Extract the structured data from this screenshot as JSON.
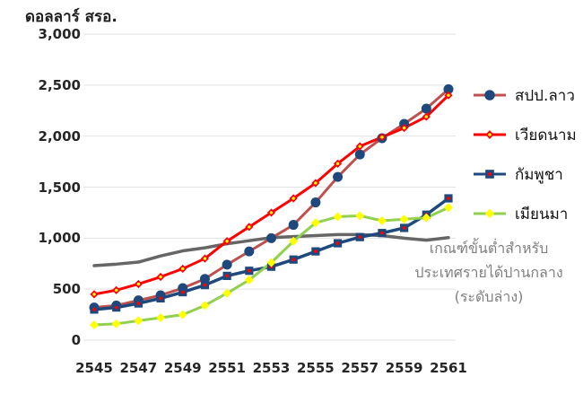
{
  "title": "ดอลลาร์ สรอ.",
  "chart_data": {
    "type": "line",
    "title": "ดอลลาร์ สรอ.",
    "unit": "US dollars",
    "x": [
      2545,
      2546,
      2547,
      2548,
      2549,
      2550,
      2551,
      2552,
      2553,
      2554,
      2555,
      2556,
      2557,
      2558,
      2559,
      2560,
      2561
    ],
    "x_tick_labels": [
      "2545",
      "2547",
      "2549",
      "2551",
      "2553",
      "2555",
      "2557",
      "2559",
      "2561"
    ],
    "y_ticks": [
      {
        "value": 0,
        "label": "0"
      },
      {
        "value": 500,
        "label": "500"
      },
      {
        "value": 1000,
        "label": "1,000"
      },
      {
        "value": 1500,
        "label": "1,500"
      },
      {
        "value": 2000,
        "label": "2,000"
      },
      {
        "value": 2500,
        "label": "2,500"
      },
      {
        "value": 3000,
        "label": "3,000"
      }
    ],
    "ylim": [
      0,
      3000
    ],
    "grid": "horizontal",
    "legend_position": "right",
    "series": [
      {
        "key": "threshold",
        "name": "เกณฑ์ขั้นต่ำสำหรับประเทศรายได้ปานกลาง (ระดับล่าง)",
        "line_color": "#666666",
        "line_width": 3.5,
        "marker": "none",
        "values": [
          730,
          745,
          765,
          825,
          875,
          905,
          945,
          975,
          1005,
          1015,
          1025,
          1035,
          1035,
          1025,
          1000,
          980,
          1005
        ]
      },
      {
        "key": "laos",
        "name": "สปป.ลาว",
        "line_color": "#C0504D",
        "line_width": 3,
        "marker": "circle",
        "marker_fill": "#1F497D",
        "values": [
          320,
          340,
          390,
          440,
          510,
          600,
          740,
          870,
          1000,
          1130,
          1350,
          1600,
          1820,
          1980,
          2120,
          2270,
          2460
        ]
      },
      {
        "key": "vietnam",
        "name": "เวียดนาม",
        "line_color": "#FF0000",
        "line_width": 3,
        "marker": "diamond",
        "marker_fill": "#FF0000",
        "marker_dot": "#FFFF00",
        "values": [
          450,
          490,
          550,
          620,
          700,
          800,
          970,
          1110,
          1250,
          1390,
          1540,
          1730,
          1900,
          1990,
          2080,
          2190,
          2400
        ]
      },
      {
        "key": "cambodia",
        "name": "กัมพูชา",
        "line_color": "#1F497D",
        "line_width": 3.5,
        "marker": "square",
        "marker_fill": "#1F497D",
        "marker_dot": "#FF0000",
        "values": [
          300,
          320,
          360,
          410,
          470,
          540,
          630,
          680,
          720,
          790,
          870,
          950,
          1010,
          1050,
          1100,
          1230,
          1390
        ]
      },
      {
        "key": "myanmar",
        "name": "เมียนมา",
        "line_color": "#92D050",
        "line_width": 3,
        "marker": "diamond",
        "marker_fill": "#FFFF00",
        "values": [
          150,
          160,
          190,
          220,
          250,
          340,
          460,
          590,
          760,
          970,
          1150,
          1210,
          1220,
          1170,
          1185,
          1200,
          1300
        ]
      }
    ]
  },
  "legend": {
    "items": [
      {
        "label": "สปป.ลาว"
      },
      {
        "label": "เวียดนาม"
      },
      {
        "label": "กัมพูชา"
      },
      {
        "label": "เมียนมา"
      }
    ]
  },
  "annotation": {
    "color": "#7f7f7f",
    "lines": [
      "เกณฑ์ขั้นต่ำสำหรับ",
      "ประเทศรายได้ปานกลาง",
      "(ระดับล่าง)"
    ]
  },
  "colors": {
    "gridline": "#e2e2e2",
    "text": "#262626",
    "annotation_gray": "#7f7f7f"
  }
}
